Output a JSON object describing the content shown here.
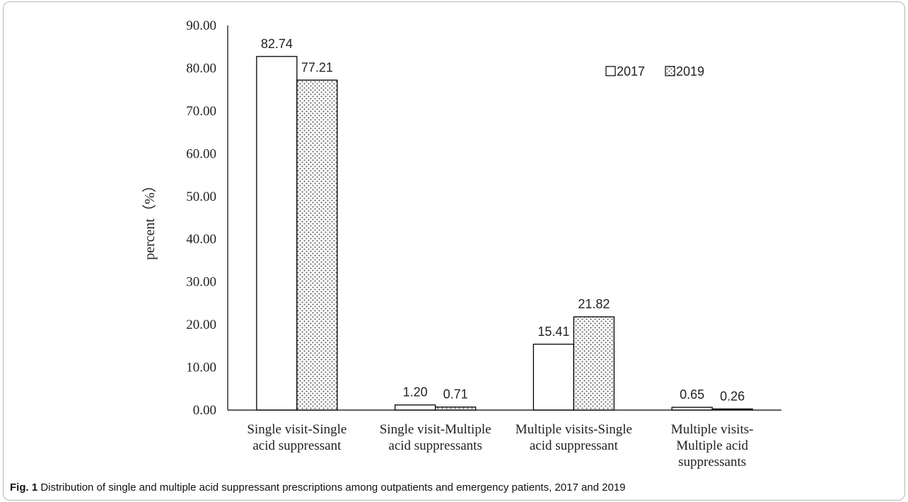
{
  "chart_data": {
    "type": "bar",
    "categories": [
      [
        "Single visit-Single",
        "acid suppressant"
      ],
      [
        "Single visit-Multiple",
        "acid suppressants"
      ],
      [
        "Multiple visits-Single",
        "acid suppressant"
      ],
      [
        "Multiple visits-",
        "Multiple acid",
        "suppressants"
      ]
    ],
    "series": [
      {
        "name": "2017",
        "values": [
          82.74,
          1.2,
          15.41,
          0.65
        ],
        "labels": [
          "82.74",
          "1.20",
          "15.41",
          "0.65"
        ],
        "fill": "plain"
      },
      {
        "name": "2019",
        "values": [
          77.21,
          0.71,
          21.82,
          0.26
        ],
        "labels": [
          "77.21",
          "0.71",
          "21.82",
          "0.26"
        ],
        "fill": "dotted"
      }
    ],
    "ylabel": "percent（%）",
    "ylim": [
      0,
      90
    ],
    "yticks": [
      "0.00",
      "10.00",
      "20.00",
      "30.00",
      "40.00",
      "50.00",
      "60.00",
      "70.00",
      "80.00",
      "90.00"
    ],
    "grid": false,
    "legend": "top-right",
    "colors": {
      "bar_border": "#000000",
      "bar_fill": "#ffffff",
      "dots": "#555555",
      "axis": "#000000"
    }
  },
  "caption": {
    "label": "Fig. 1",
    "text": "Distribution of single and multiple acid suppressant prescriptions among outpatients and emergency patients, 2017 and 2019"
  }
}
